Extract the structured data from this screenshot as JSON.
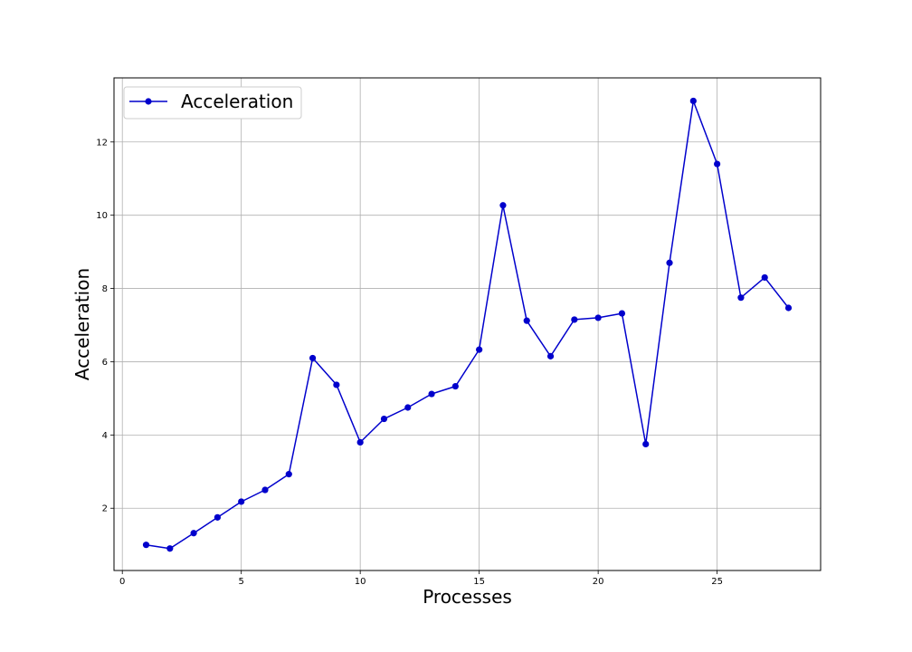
{
  "chart_data": {
    "type": "line",
    "title": "",
    "xlabel": "Processes",
    "ylabel": "Acceleration",
    "xlim": [
      -0.35,
      29.35
    ],
    "ylim": [
      0.3,
      13.75
    ],
    "x_ticks": [
      0,
      5,
      10,
      15,
      20,
      25
    ],
    "y_ticks": [
      2,
      4,
      6,
      8,
      10,
      12
    ],
    "grid": true,
    "legend_position": "top-left",
    "series": [
      {
        "name": "Acceleration",
        "color": "#0000cc",
        "marker": "circle",
        "x": [
          1,
          2,
          3,
          4,
          5,
          6,
          7,
          8,
          9,
          10,
          11,
          12,
          13,
          14,
          15,
          16,
          17,
          18,
          19,
          20,
          21,
          22,
          23,
          24,
          25,
          26,
          27,
          28
        ],
        "y": [
          1.0,
          0.9,
          1.32,
          1.75,
          2.18,
          2.5,
          2.93,
          6.1,
          5.37,
          3.8,
          4.44,
          4.75,
          5.12,
          5.33,
          6.33,
          10.27,
          7.12,
          6.15,
          7.15,
          7.2,
          7.32,
          3.75,
          8.7,
          13.12,
          11.4,
          7.75,
          8.3,
          7.47
        ]
      }
    ]
  }
}
